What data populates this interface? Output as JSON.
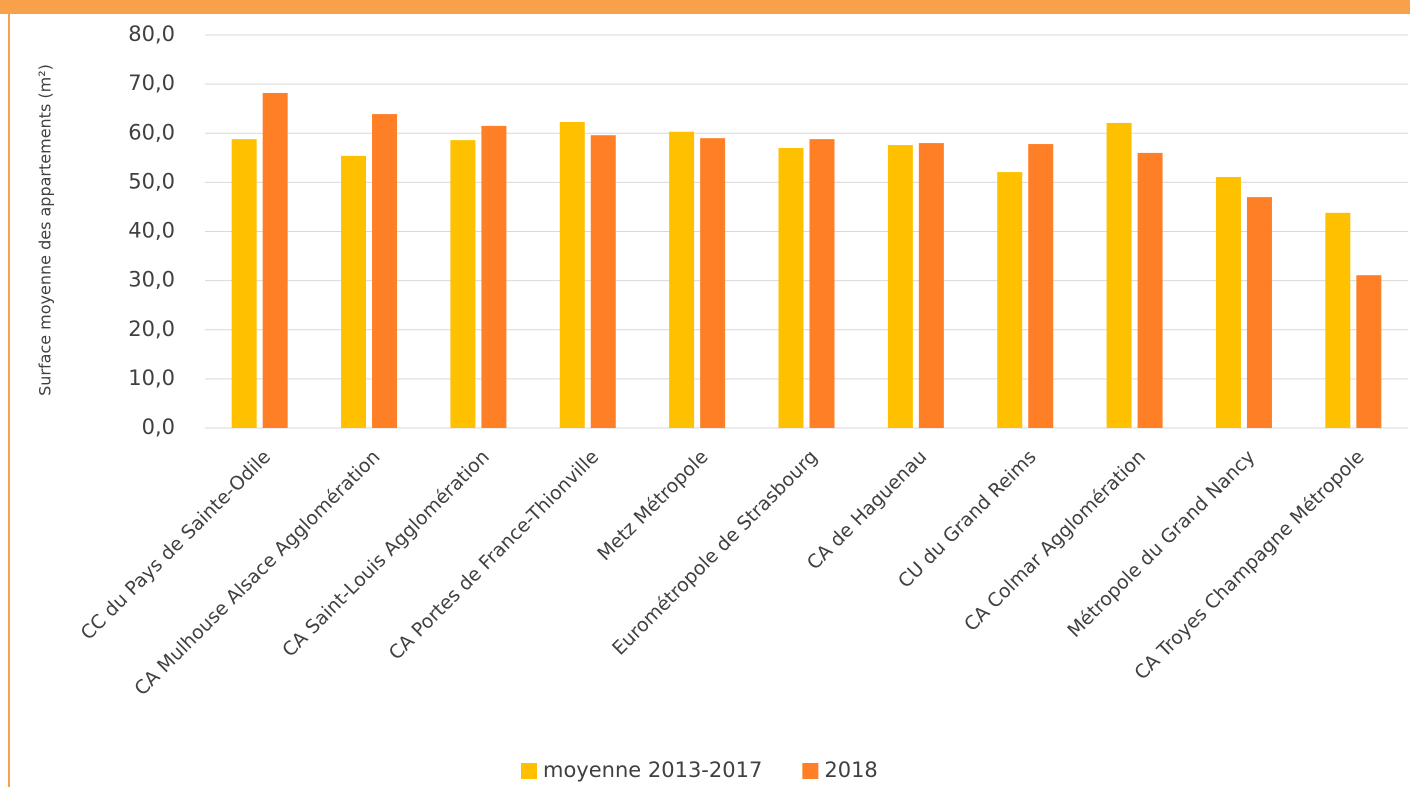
{
  "chart_data": {
    "type": "bar",
    "y_label": "Surface moyenne des appartements (m²)",
    "categories": [
      "CC du Pays de Sainte-Odile",
      "CA Mulhouse Alsace Agglomération",
      "CA Saint-Louis Agglomération",
      "CA Portes de France-Thionville",
      "Metz Métropole",
      "Eurométropole de Strasbourg",
      "CA de Haguenau",
      "CU du Grand Reims",
      "CA Colmar Agglomération",
      "Métropole du Grand Nancy",
      "CA Troyes Champagne Métropole"
    ],
    "series": [
      {
        "name": "moyenne 2013-2017",
        "color": "#FFC000",
        "values": [
          58.8,
          55.4,
          58.6,
          62.3,
          60.3,
          57.0,
          57.6,
          52.1,
          62.1,
          51.1,
          43.8
        ]
      },
      {
        "name": "2018",
        "color": "#FF7F27",
        "values": [
          68.2,
          63.9,
          61.5,
          59.6,
          59.0,
          58.8,
          58.0,
          57.8,
          56.0,
          47.0,
          31.1
        ]
      }
    ],
    "ylim": [
      0,
      80
    ],
    "yticks": [
      {
        "value": 0,
        "label": "0,0"
      },
      {
        "value": 10,
        "label": "10,0"
      },
      {
        "value": 20,
        "label": "20,0"
      },
      {
        "value": 30,
        "label": "30,0"
      },
      {
        "value": 40,
        "label": "40,0"
      },
      {
        "value": 50,
        "label": "50,0"
      },
      {
        "value": 60,
        "label": "60,0"
      },
      {
        "value": 70,
        "label": "70,0"
      },
      {
        "value": 80,
        "label": "80,0"
      }
    ],
    "grid": true,
    "legend": "bottom"
  }
}
